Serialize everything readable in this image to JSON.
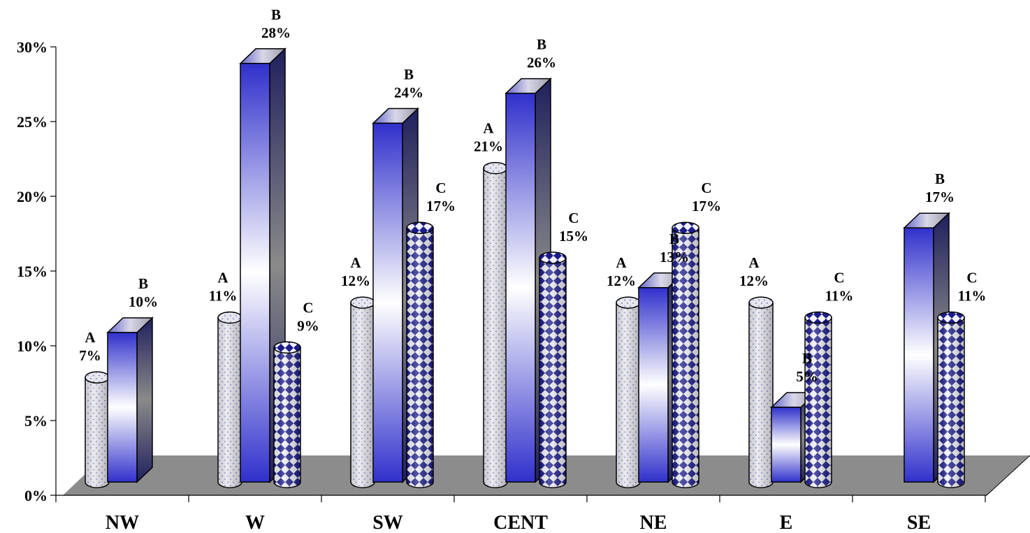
{
  "chart_data": {
    "type": "bar",
    "categories": [
      "NW",
      "W",
      "SW",
      "CENT",
      "NE",
      "E",
      "SE"
    ],
    "series": [
      {
        "name": "A",
        "values": [
          7,
          11,
          12,
          21,
          12,
          12,
          null
        ]
      },
      {
        "name": "B",
        "values": [
          10,
          28,
          24,
          26,
          13,
          5,
          17
        ]
      },
      {
        "name": "C",
        "values": [
          null,
          9,
          17,
          15,
          17,
          11,
          11
        ]
      }
    ],
    "data_labels": [
      [
        "7%",
        "11%",
        "12%",
        "21%",
        "12%",
        "12%",
        null
      ],
      [
        "10%",
        "28%",
        "24%",
        "26%",
        "13%",
        "5%",
        "17%"
      ],
      [
        null,
        "9%",
        "17%",
        "15%",
        "17%",
        "11%",
        "11%"
      ]
    ],
    "yticks": [
      "0%",
      "5%",
      "10%",
      "15%",
      "20%",
      "25%",
      "30%"
    ],
    "ylim": [
      0,
      30
    ],
    "title": "",
    "xlabel": "",
    "ylabel": "",
    "grid": false,
    "legend": "none",
    "colors": {
      "A": "#e4e4ec",
      "B": "#3a3ad0",
      "C": "#1c1c8a",
      "floor": "#8c8c8c"
    }
  }
}
